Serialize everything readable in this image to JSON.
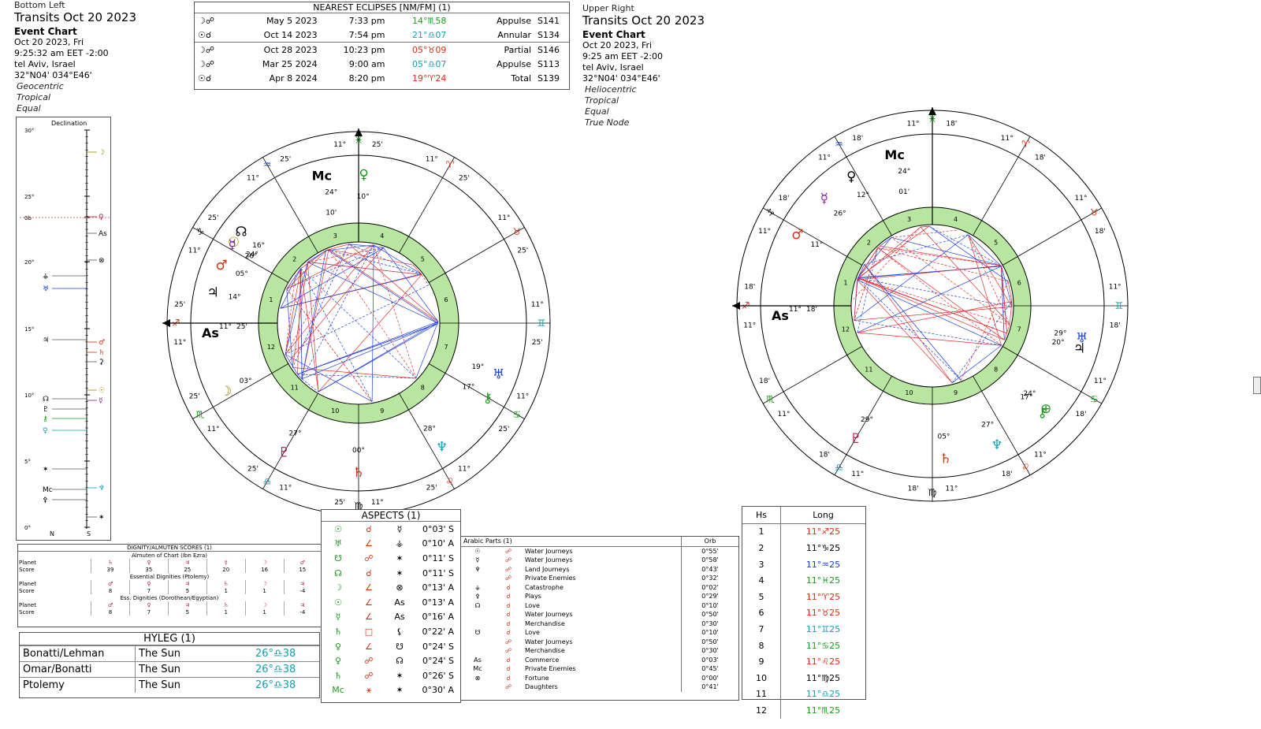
{
  "left_header": {
    "position": "Bottom Left",
    "title": "Transits Oct 20 2023",
    "chart_type": "Event Chart",
    "date": "Oct 20 2023, Fri",
    "time": "9:25:32 am  EET -2:00",
    "place": "tel Aviv, Israel",
    "coords": "32°N04' 034°E46'",
    "options": [
      "Geocentric",
      "Tropical",
      "Equal"
    ]
  },
  "right_header": {
    "position": "Upper Right",
    "title": "Transits Oct 20 2023",
    "chart_type": "Event Chart",
    "date": "Oct 20 2023, Fri",
    "time": "9:25 am  EET -2:00",
    "place": "tel Aviv, Israel",
    "coords": "32°N04' 034°E46'",
    "options": [
      "Heliocentric",
      "Tropical",
      "Equal",
      "True Node"
    ]
  },
  "eclipses": {
    "title": "NEAREST ECLIPSES [NM/FM] (1)",
    "rows": [
      {
        "icon": "☽☍",
        "date": "May 5 2023",
        "time": "7:33 pm",
        "pos": "14°♏58",
        "pos_color": "#1a9a1a",
        "type": "Appulse",
        "saros": "S141"
      },
      {
        "icon": "☉☌",
        "date": "Oct 14 2023",
        "time": "7:54 pm",
        "pos": "21°♎07",
        "pos_color": "#10a0b0",
        "type": "Annular",
        "saros": "S134"
      },
      {
        "icon": "☽☍",
        "date": "Oct 28 2023",
        "time": "10:23 pm",
        "pos": "05°♉09",
        "pos_color": "#d43010",
        "type": "Partial",
        "saros": "S146"
      },
      {
        "icon": "☽☍",
        "date": "Mar 25 2024",
        "time": "9:00 am",
        "pos": "05°♎07",
        "pos_color": "#10a0b0",
        "type": "Appulse",
        "saros": "S113"
      },
      {
        "icon": "☉☌",
        "date": "Apr 8 2024",
        "time": "8:20 pm",
        "pos": "19°♈24",
        "pos_color": "#d43010",
        "type": "Total",
        "saros": "S139"
      }
    ]
  },
  "declination": {
    "title": "Declination",
    "ticks": [
      "30°",
      "25°",
      "0b",
      "20°",
      "15°",
      "10°",
      "5°",
      "0°"
    ],
    "axis_n": "N",
    "axis_s": "S"
  },
  "left_wheel": {
    "cusp_labels": [
      "11°",
      "25'",
      "11°",
      "25'",
      "11°",
      "25'",
      "11°",
      "25'",
      "11°",
      "25'",
      "11°",
      "25'"
    ],
    "mc_label": "Mc",
    "asc_label": "As",
    "mc_deg": "24°",
    "mc_min": "10'",
    "asc_deg": "11°",
    "asc_min": "25'",
    "planet_glyphs": [
      "☉",
      "☽",
      "☿",
      "♀",
      "♂",
      "♃",
      "♄",
      "♅",
      "♆",
      "♇",
      "☊",
      "⚷"
    ],
    "house_numbers": [
      "1",
      "2",
      "3",
      "4",
      "5",
      "6",
      "7",
      "8",
      "9",
      "10",
      "11",
      "12"
    ]
  },
  "right_wheel": {
    "mc_label": "Mc",
    "asc_label": "As",
    "mc_deg": "24°",
    "mc_min": "01'",
    "asc_deg": "11°",
    "asc_min": "18'",
    "planet_glyphs": [
      "⊕",
      "☿",
      "♀",
      "♂",
      "♃",
      "♄",
      "♅",
      "♆",
      "♇",
      "⚷"
    ],
    "house_numbers": [
      "1",
      "2",
      "3",
      "4",
      "5",
      "6",
      "7",
      "8",
      "9",
      "10",
      "11",
      "12"
    ]
  },
  "aspects": {
    "title": "ASPECTS (1)",
    "rows": [
      {
        "p1": "☉",
        "asp": "☌",
        "p2": "☿",
        "orb": "0°03' S"
      },
      {
        "p1": "♅",
        "asp": "∠",
        "p2": "⚶",
        "orb": "0°10' A"
      },
      {
        "p1": "☋",
        "asp": "☍",
        "p2": "✶",
        "orb": "0°11' S"
      },
      {
        "p1": "☊",
        "asp": "☌",
        "p2": "✶",
        "orb": "0°11' S"
      },
      {
        "p1": "☽",
        "asp": "∠",
        "p2": "⊗",
        "orb": "0°13' A"
      },
      {
        "p1": "☉",
        "asp": "∠",
        "p2": "As",
        "orb": "0°13' A"
      },
      {
        "p1": "☿",
        "asp": "∠",
        "p2": "As",
        "orb": "0°16' A"
      },
      {
        "p1": "♄",
        "asp": "□",
        "p2": "⚸",
        "orb": "0°22' A"
      },
      {
        "p1": "♀",
        "asp": "∠",
        "p2": "☋",
        "orb": "0°24' S"
      },
      {
        "p1": "♀",
        "asp": "☍",
        "p2": "☊",
        "orb": "0°24' S"
      },
      {
        "p1": "♄",
        "asp": "☍",
        "p2": "✶",
        "orb": "0°26' S"
      },
      {
        "p1": "Mc",
        "asp": "⚹",
        "p2": "✶",
        "orb": "0°30' A"
      }
    ]
  },
  "arabic_parts": {
    "title": "Arabic Parts (1)",
    "orb_header": "Orb",
    "rows": [
      {
        "g": "☉",
        "a": "☍",
        "name": "Water Journeys",
        "orb": "0°55'"
      },
      {
        "g": "☿",
        "a": "☍",
        "name": "Water Journeys",
        "orb": "0°58'"
      },
      {
        "g": "♆",
        "a": "☍",
        "name": "Land Journeys",
        "orb": "0°43'"
      },
      {
        "g": "",
        "a": "☍",
        "name": "Private Enemies",
        "orb": "0°32'"
      },
      {
        "g": "⚶",
        "a": "☌",
        "name": "Catastrophe",
        "orb": "0°02'"
      },
      {
        "g": "⚴",
        "a": "☌",
        "name": "Plays",
        "orb": "0°29'"
      },
      {
        "g": "☊",
        "a": "☌",
        "name": "Love",
        "orb": "0°10'"
      },
      {
        "g": "",
        "a": "☌",
        "name": "Water Journeys",
        "orb": "0°50'"
      },
      {
        "g": "",
        "a": "☌",
        "name": "Merchandise",
        "orb": "0°30'"
      },
      {
        "g": "☋",
        "a": "☌",
        "name": "Love",
        "orb": "0°10'"
      },
      {
        "g": "",
        "a": "☍",
        "name": "Water Journeys",
        "orb": "0°50'"
      },
      {
        "g": "",
        "a": "☍",
        "name": "Merchandise",
        "orb": "0°30'"
      },
      {
        "g": "As",
        "a": "☌",
        "name": "Commerce",
        "orb": "0°03'"
      },
      {
        "g": "Mc",
        "a": "☌",
        "name": "Private Enemies",
        "orb": "0°45'"
      },
      {
        "g": "⊗",
        "a": "☌",
        "name": "Fortune",
        "orb": "0°00'"
      },
      {
        "g": "",
        "a": "☍",
        "name": "Daughters",
        "orb": "0°41'"
      }
    ]
  },
  "houses": {
    "col1": "Hs",
    "col2": "Long",
    "rows": [
      {
        "n": "1",
        "v": "11°♐25",
        "c": "#d43010"
      },
      {
        "n": "2",
        "v": "11°♑25",
        "c": "#000000"
      },
      {
        "n": "3",
        "v": "11°♒25",
        "c": "#1a40d0"
      },
      {
        "n": "4",
        "v": "11°♓25",
        "c": "#1a9a1a"
      },
      {
        "n": "5",
        "v": "11°♈25",
        "c": "#d43010"
      },
      {
        "n": "6",
        "v": "11°♉25",
        "c": "#d43010"
      },
      {
        "n": "7",
        "v": "11°♊25",
        "c": "#10a0b0"
      },
      {
        "n": "8",
        "v": "11°♋25",
        "c": "#1a9a1a"
      },
      {
        "n": "9",
        "v": "11°♌25",
        "c": "#d43010"
      },
      {
        "n": "10",
        "v": "11°♍25",
        "c": "#000000"
      },
      {
        "n": "11",
        "v": "11°♎25",
        "c": "#10a0b0"
      },
      {
        "n": "12",
        "v": "11°♏25",
        "c": "#1a9a1a"
      }
    ]
  },
  "hyleg": {
    "title": "HYLEG (1)",
    "rows": [
      {
        "method": "Bonatti/Lehman",
        "body": "The Sun",
        "pos": "26°♎38"
      },
      {
        "method": "Omar/Bonatti",
        "body": "The Sun",
        "pos": "26°♎38"
      },
      {
        "method": "Ptolemy",
        "body": "The Sun",
        "pos": "26°♎38"
      }
    ]
  },
  "dignity": {
    "title": "DIGNITY/ALMUTEN SCORES (1)",
    "sections": [
      {
        "name": "Almuten of Chart (Ibn Ezra)",
        "planets": [
          "♄",
          "♀",
          "♃",
          "☿",
          "☽",
          "♂"
        ],
        "scores": [
          "39",
          "35",
          "25",
          "20",
          "16",
          "15"
        ]
      },
      {
        "name": "Essential Dignities (Ptolemy)",
        "planets": [
          "♂",
          "♀",
          "♃",
          "♄",
          "☽",
          "♃"
        ],
        "scores": [
          "8",
          "7",
          "5",
          "1",
          "1",
          "-4"
        ]
      },
      {
        "name": "Ess. Dignities (Dorothean/Egyptian)",
        "planets": [
          "♂",
          "♀",
          "♃",
          "♄",
          "☽",
          "♃"
        ],
        "scores": [
          "8",
          "7",
          "5",
          "1",
          "1",
          "-4"
        ]
      }
    ],
    "row_planet": "Planet",
    "row_score": "Score"
  },
  "colors": {
    "ring_green": "#b8e6a0",
    "aspect_red": "#e03030",
    "aspect_blue": "#2040e0",
    "fire": "#d43010",
    "earth": "#1a9a1a",
    "air": "#10a0b0",
    "water": "#1a40d0"
  }
}
